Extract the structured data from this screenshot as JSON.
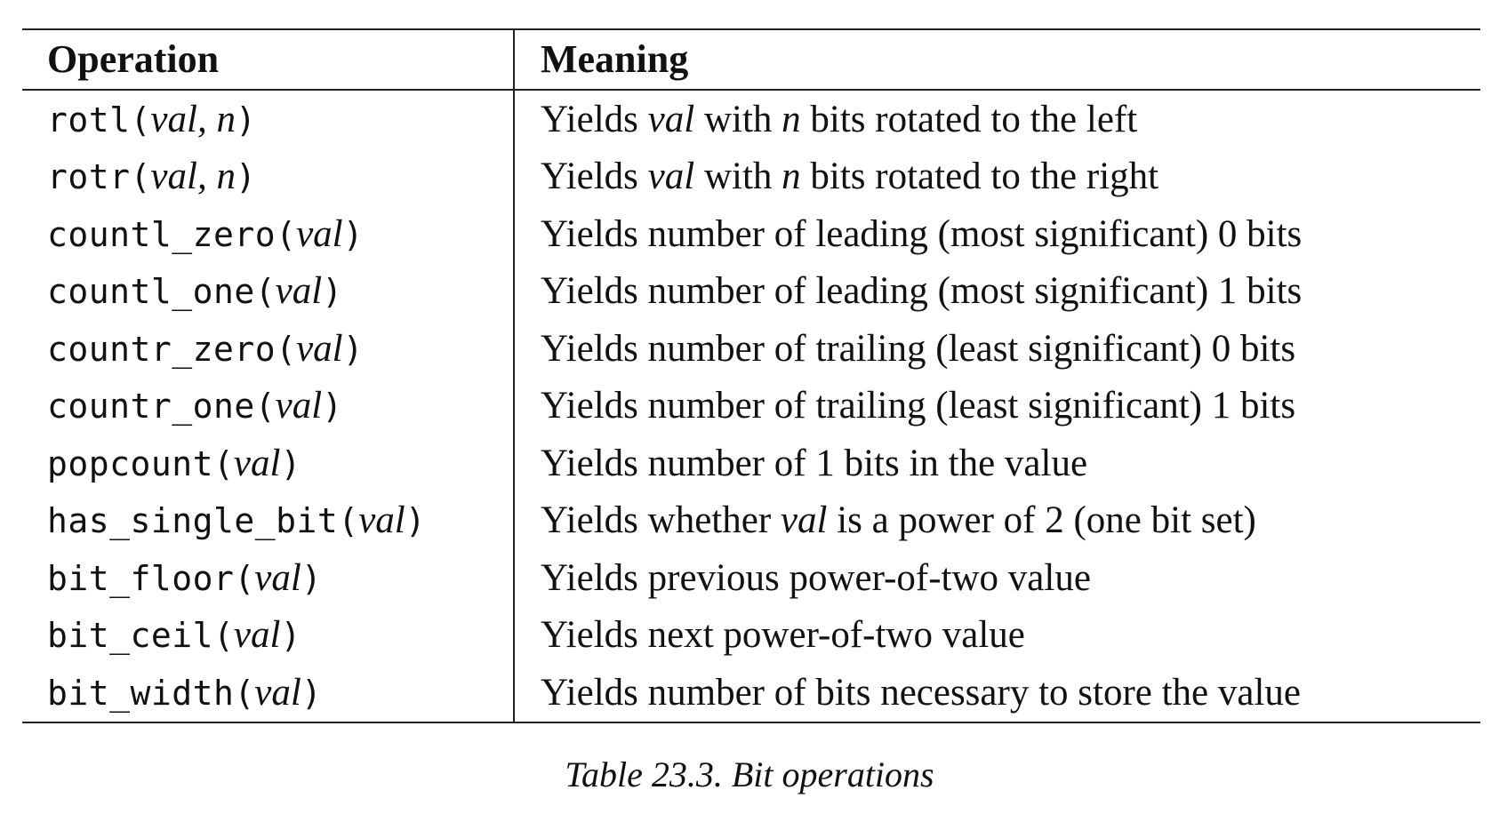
{
  "table": {
    "headers": {
      "operation": "Operation",
      "meaning": "Meaning"
    },
    "rows": [
      {
        "fn": "rotl",
        "open": "(",
        "args": "val, n",
        "close": ")",
        "meaning": [
          {
            "t": "Yields ",
            "i": false
          },
          {
            "t": "val",
            "i": true
          },
          {
            "t": " with ",
            "i": false
          },
          {
            "t": "n",
            "i": true
          },
          {
            "t": " bits rotated to the left",
            "i": false
          }
        ]
      },
      {
        "fn": "rotr",
        "open": "(",
        "args": "val, n",
        "close": ")",
        "meaning": [
          {
            "t": "Yields ",
            "i": false
          },
          {
            "t": "val",
            "i": true
          },
          {
            "t": " with ",
            "i": false
          },
          {
            "t": "n",
            "i": true
          },
          {
            "t": " bits rotated to the right",
            "i": false
          }
        ]
      },
      {
        "fn": "countl_zero",
        "open": "(",
        "args": "val",
        "close": ")",
        "meaning": [
          {
            "t": "Yields number of leading (most significant) 0 bits",
            "i": false
          }
        ]
      },
      {
        "fn": "countl_one",
        "open": "(",
        "args": "val",
        "close": ")",
        "meaning": [
          {
            "t": "Yields number of leading (most significant) 1 bits",
            "i": false
          }
        ]
      },
      {
        "fn": "countr_zero",
        "open": "(",
        "args": "val",
        "close": ")",
        "meaning": [
          {
            "t": "Yields number of trailing (least significant) 0 bits",
            "i": false
          }
        ]
      },
      {
        "fn": "countr_one",
        "open": "(",
        "args": "val",
        "close": ")",
        "meaning": [
          {
            "t": "Yields number of trailing (least significant) 1 bits",
            "i": false
          }
        ]
      },
      {
        "fn": "popcount",
        "open": "(",
        "args": "val",
        "close": ")",
        "meaning": [
          {
            "t": "Yields number of 1 bits in the value",
            "i": false
          }
        ]
      },
      {
        "fn": "has_single_bit",
        "open": "(",
        "args": "val",
        "close": ")",
        "meaning": [
          {
            "t": "Yields whether ",
            "i": false
          },
          {
            "t": "val",
            "i": true
          },
          {
            "t": " is a power of 2 (one bit set)",
            "i": false
          }
        ]
      },
      {
        "fn": "bit_floor",
        "open": "(",
        "args": "val",
        "close": ")",
        "meaning": [
          {
            "t": "Yields previous power-of-two value",
            "i": false
          }
        ]
      },
      {
        "fn": "bit_ceil",
        "open": "(",
        "args": "val",
        "close": ")",
        "meaning": [
          {
            "t": "Yields next power-of-two value",
            "i": false
          }
        ]
      },
      {
        "fn": "bit_width",
        "open": "(",
        "args": "val",
        "close": ")",
        "meaning": [
          {
            "t": "Yields number of bits necessary to store the value",
            "i": false
          }
        ]
      }
    ]
  },
  "caption": "Table 23.3. Bit operations"
}
